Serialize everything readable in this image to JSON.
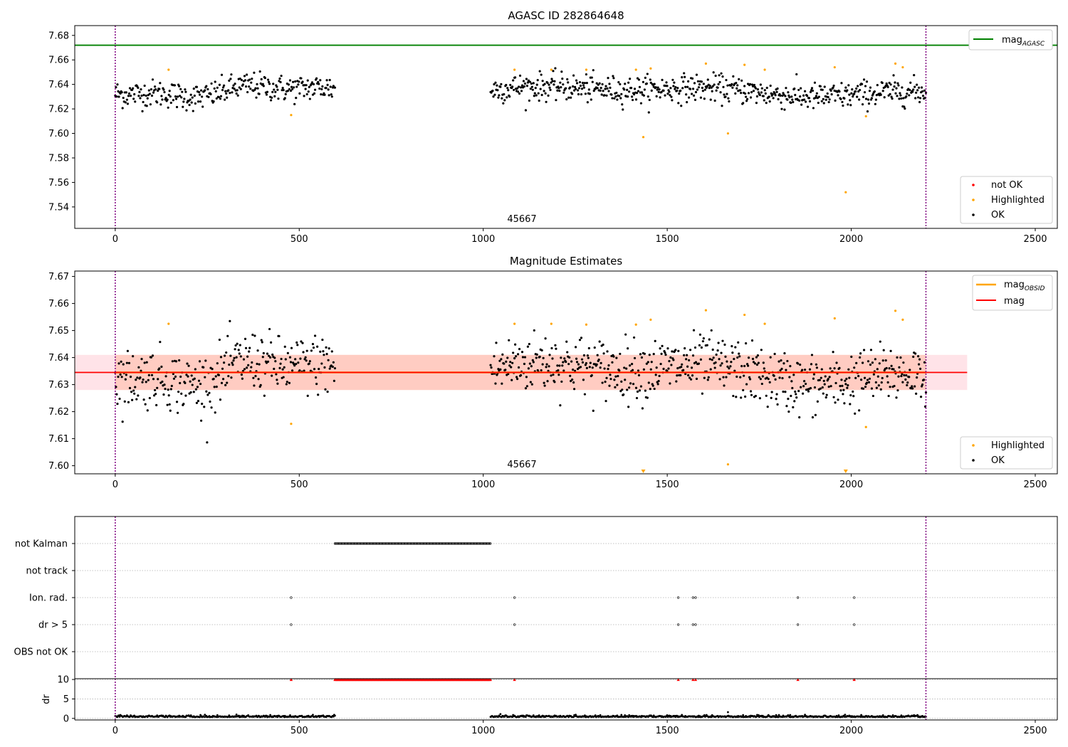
{
  "chart_data": [
    {
      "type": "scatter",
      "title": "AGASC ID 282864648",
      "xlabel": "",
      "ylabel": "",
      "xlim": [
        -110,
        2560
      ],
      "ylim": [
        7.5225,
        7.688
      ],
      "xticks": [
        0,
        500,
        1000,
        1500,
        2000,
        2500
      ],
      "yticks": [
        7.54,
        7.56,
        7.58,
        7.6,
        7.62,
        7.64,
        7.66,
        7.68
      ],
      "grid": false,
      "vlines": [
        0,
        2203
      ],
      "hlines": [
        {
          "name": "mag_AGASC",
          "y": 7.672,
          "color": "#008000"
        }
      ],
      "annotation": "45667",
      "legends": [
        {
          "placement": "upper right",
          "entries": [
            {
              "label": "mag",
              "sub": "AGASC",
              "color": "#008000",
              "kind": "line"
            }
          ]
        },
        {
          "placement": "lower right",
          "entries": [
            {
              "label": "not OK",
              "color": "#ff0000",
              "kind": "dot"
            },
            {
              "label": "Highlighted",
              "color": "#ffa500",
              "kind": "dot"
            },
            {
              "label": "OK",
              "color": "#000000",
              "kind": "dot"
            }
          ]
        }
      ],
      "series": [
        {
          "name": "OK",
          "color": "#000000",
          "segments": [
            {
              "x0": 0,
              "x1": 597,
              "n": 300
            },
            {
              "x0": 1020,
              "x1": 2203,
              "n": 620
            }
          ]
        },
        {
          "name": "Highlighted",
          "color": "#ffa500",
          "points": [
            [
              145,
              7.652
            ],
            [
              478,
              7.615
            ],
            [
              1085,
              7.652
            ],
            [
              1185,
              7.652
            ],
            [
              1280,
              7.652
            ],
            [
              1415,
              7.652
            ],
            [
              1435,
              7.597
            ],
            [
              1455,
              7.653
            ],
            [
              1605,
              7.657
            ],
            [
              1665,
              7.6
            ],
            [
              1710,
              7.656
            ],
            [
              1765,
              7.652
            ],
            [
              1955,
              7.654
            ],
            [
              1985,
              7.552
            ],
            [
              2040,
              7.614
            ],
            [
              2120,
              7.657
            ],
            [
              2140,
              7.654
            ]
          ]
        }
      ]
    },
    {
      "type": "scatter",
      "title": "Magnitude Estimates",
      "xlabel": "",
      "ylabel": "",
      "xlim": [
        -110,
        2560
      ],
      "ylim": [
        7.597,
        7.672
      ],
      "xticks": [
        0,
        500,
        1000,
        1500,
        2000,
        2500
      ],
      "yticks": [
        7.6,
        7.61,
        7.62,
        7.63,
        7.64,
        7.65,
        7.66,
        7.67
      ],
      "grid": false,
      "vlines": [
        0,
        2203
      ],
      "mag": {
        "value": 7.6345,
        "band": [
          7.628,
          7.641
        ],
        "obsid_value": 7.6345,
        "x_range": [
          -110,
          2315
        ]
      },
      "annotation": "45667",
      "legends": [
        {
          "placement": "upper right",
          "entries": [
            {
              "label": "mag",
              "sub": "OBSID",
              "color": "#ffa500",
              "kind": "line"
            },
            {
              "label": "mag",
              "sub": "",
              "color": "#ff0000",
              "kind": "line"
            }
          ]
        },
        {
          "placement": "lower right",
          "entries": [
            {
              "label": "Highlighted",
              "color": "#ffa500",
              "kind": "dot"
            },
            {
              "label": "OK",
              "color": "#000000",
              "kind": "dot"
            }
          ]
        }
      ],
      "series": [
        {
          "name": "OK",
          "color": "#000000",
          "segments": [
            {
              "x0": 0,
              "x1": 597,
              "n": 300
            },
            {
              "x0": 1020,
              "x1": 2203,
              "n": 620
            }
          ]
        },
        {
          "name": "Highlighted",
          "color": "#ffa500",
          "points": [
            [
              145,
              7.6525
            ],
            [
              478,
              7.6155
            ],
            [
              1085,
              7.6525
            ],
            [
              1185,
              7.6525
            ],
            [
              1280,
              7.6522
            ],
            [
              1415,
              7.6522
            ],
            [
              1455,
              7.654
            ],
            [
              1605,
              7.6575
            ],
            [
              1665,
              7.6005
            ],
            [
              1710,
              7.6558
            ],
            [
              1765,
              7.6525
            ],
            [
              1955,
              7.6545
            ],
            [
              2040,
              7.6143
            ],
            [
              2120,
              7.6573
            ],
            [
              2140,
              7.654
            ]
          ]
        },
        {
          "name": "below range",
          "color": "#ffa500",
          "marker": "triangle-down",
          "x": [
            1435,
            1985
          ]
        }
      ]
    },
    {
      "type": "scatter",
      "title": "",
      "categories": [
        "not Kalman",
        "not track",
        "Ion. rad.",
        "dr > 5",
        "OBS not OK"
      ],
      "xlim": [
        -110,
        2560
      ],
      "vlines": [
        0,
        2203
      ],
      "flags": {
        "not Kalman": {
          "ranges": [
            [
              597,
              1020
            ]
          ]
        },
        "not track": {
          "ranges": []
        },
        "Ion. rad.": {
          "x": [
            478,
            1085,
            1530,
            1570,
            1577,
            1855,
            2008
          ]
        },
        "dr > 5": {
          "x": [
            478,
            1085,
            1530,
            1570,
            1577,
            1855,
            2008
          ]
        },
        "OBS not OK": {
          "ranges": []
        }
      }
    },
    {
      "type": "scatter",
      "title": "",
      "xlabel": "",
      "ylabel": "dr",
      "xlim": [
        -110,
        2560
      ],
      "ylim": [
        -0.4,
        10.2
      ],
      "xticks": [
        0,
        500,
        1000,
        1500,
        2000,
        2500
      ],
      "yticks": [
        0,
        5,
        10
      ],
      "vlines": [
        0,
        2203
      ],
      "series": [
        {
          "name": "dr",
          "color": "#000000",
          "segments": [
            {
              "x0": 0,
              "x1": 597,
              "n": 300
            },
            {
              "x0": 1020,
              "x1": 2203,
              "n": 620
            }
          ],
          "spike": [
            1665,
            1.6
          ]
        },
        {
          "name": "dr clipped",
          "color": "#ff0000",
          "marker": "triangle-up",
          "ranges": [
            [
              597,
              1020
            ]
          ],
          "x": [
            478,
            1085,
            1530,
            1570,
            1577,
            1855,
            2008
          ]
        }
      ]
    }
  ]
}
